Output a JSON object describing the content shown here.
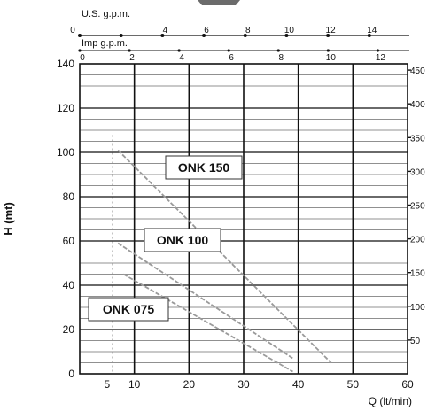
{
  "chart_data": {
    "type": "line",
    "title": "",
    "xlabel": "Q (lt/min)",
    "ylabel": "H (mt)",
    "xlim": [
      0,
      60
    ],
    "ylim": [
      0,
      140
    ],
    "x_ticks": [
      5,
      10,
      20,
      30,
      40,
      50,
      60
    ],
    "y_ticks": [
      0,
      20,
      40,
      60,
      80,
      100,
      120,
      140
    ],
    "grid": true,
    "top_axes": [
      {
        "label": "U.S. g.p.m.",
        "ticks": [
          0,
          2,
          4,
          6,
          8,
          10,
          12,
          14
        ],
        "tick_labels": [
          "0",
          "",
          "4",
          "6",
          "8",
          "10",
          "12",
          "14"
        ]
      },
      {
        "label": "Imp g.p.m.",
        "ticks": [
          0,
          2,
          4,
          6,
          8,
          10,
          12
        ],
        "tick_labels": [
          "0",
          "2",
          "4",
          "6",
          "8",
          "10",
          "12"
        ]
      }
    ],
    "right_axis": {
      "ticks": [
        50,
        100,
        150,
        200,
        250,
        300,
        350,
        400,
        450
      ],
      "tick_labels": [
        "50",
        "100",
        "150",
        "200",
        "250",
        "300",
        "350",
        "400",
        "450"
      ]
    },
    "series": [
      {
        "name": "ONK 150",
        "x": [
          7,
          46
        ],
        "y": [
          101,
          5
        ]
      },
      {
        "name": "ONK 100",
        "x": [
          7,
          39
        ],
        "y": [
          59,
          7
        ]
      },
      {
        "name": "ONK 075",
        "x": [
          8,
          39
        ],
        "y": [
          45,
          1
        ]
      }
    ],
    "reference_line": {
      "x": 6,
      "y": [
        1,
        108
      ]
    }
  }
}
